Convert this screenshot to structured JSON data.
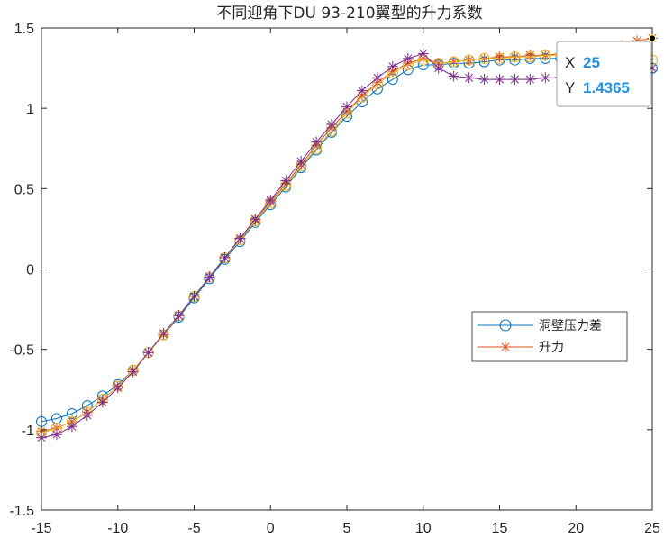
{
  "chart_data": {
    "type": "line",
    "title": "不同迎角下DU 93-210翼型的升力系数",
    "xlabel": "",
    "ylabel": "",
    "xlim": [
      -15,
      25
    ],
    "ylim": [
      -1.5,
      1.5
    ],
    "xticks": [
      "-15",
      "-10",
      "-5",
      "0",
      "5",
      "10",
      "15",
      "20",
      "25"
    ],
    "yticks": [
      "1.5",
      "1",
      "0.5",
      "0",
      "-0.5",
      "-1",
      "-1.5"
    ],
    "grid": false,
    "legend_position": "right",
    "x": [
      -15,
      -14,
      -13,
      -12,
      -11,
      -10,
      -9,
      -8,
      -7,
      -6,
      -5,
      -4,
      -3,
      -2,
      -1,
      0,
      1,
      2,
      3,
      4,
      5,
      6,
      7,
      8,
      9,
      10,
      11,
      12,
      13,
      14,
      15,
      16,
      17,
      18,
      19,
      20,
      21,
      22,
      23,
      24,
      25
    ],
    "series": [
      {
        "name": "洞壁压力差",
        "color": "#0072BD",
        "marker": "circle",
        "values": [
          -0.95,
          -0.93,
          -0.9,
          -0.85,
          -0.79,
          -0.72,
          -0.63,
          -0.52,
          -0.41,
          -0.3,
          -0.18,
          -0.06,
          0.06,
          0.17,
          0.29,
          0.4,
          0.51,
          0.63,
          0.74,
          0.85,
          0.95,
          1.04,
          1.12,
          1.18,
          1.24,
          1.27,
          1.27,
          1.28,
          1.28,
          1.29,
          1.3,
          1.3,
          1.31,
          1.31,
          1.31,
          1.3,
          1.3,
          1.29,
          1.28,
          1.27,
          1.25
        ]
      },
      {
        "name": "升力",
        "color": "#D95319",
        "marker": "asterisk",
        "values": [
          -1.01,
          -0.99,
          -0.95,
          -0.89,
          -0.81,
          -0.73,
          -0.63,
          -0.52,
          -0.41,
          -0.29,
          -0.17,
          -0.05,
          0.07,
          0.19,
          0.3,
          0.42,
          0.53,
          0.65,
          0.77,
          0.88,
          0.98,
          1.08,
          1.16,
          1.23,
          1.28,
          1.31,
          1.28,
          1.29,
          1.3,
          1.31,
          1.32,
          1.32,
          1.33,
          1.33,
          1.34,
          1.35,
          1.36,
          1.37,
          1.39,
          1.42,
          1.4365
        ]
      },
      {
        "color": "#EDB120",
        "marker": "circle",
        "values": [
          -1.02,
          -0.99,
          -0.95,
          -0.89,
          -0.81,
          -0.73,
          -0.63,
          -0.52,
          -0.41,
          -0.29,
          -0.17,
          -0.05,
          0.07,
          0.18,
          0.3,
          0.41,
          0.52,
          0.64,
          0.75,
          0.86,
          0.97,
          1.07,
          1.15,
          1.22,
          1.27,
          1.3,
          1.28,
          1.29,
          1.3,
          1.31,
          1.31,
          1.32,
          1.32,
          1.33,
          1.33,
          1.33,
          1.33,
          1.33,
          1.32,
          1.31,
          1.3
        ]
      },
      {
        "color": "#7E2F8E",
        "marker": "asterisk",
        "values": [
          -1.05,
          -1.03,
          -0.98,
          -0.91,
          -0.83,
          -0.74,
          -0.64,
          -0.52,
          -0.4,
          -0.29,
          -0.17,
          -0.05,
          0.07,
          0.19,
          0.31,
          0.43,
          0.55,
          0.67,
          0.79,
          0.9,
          1.01,
          1.11,
          1.19,
          1.26,
          1.31,
          1.34,
          1.25,
          1.2,
          1.19,
          1.18,
          1.18,
          1.18,
          1.18,
          1.19,
          1.19,
          1.2,
          1.21,
          1.22,
          1.23,
          1.24,
          1.25
        ]
      }
    ],
    "datatip": {
      "x_label": "X",
      "x_value": "25",
      "y_label": "Y",
      "y_value": "1.4365",
      "point": [
        25,
        1.4365
      ]
    }
  }
}
